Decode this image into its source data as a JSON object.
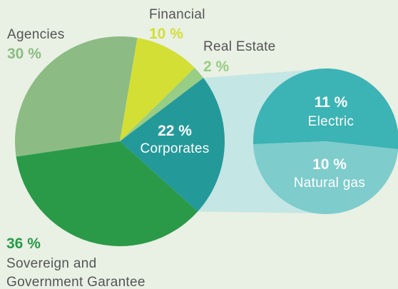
{
  "chart_data": {
    "type": "pie-of-pie",
    "categories": [
      "Corporates",
      "Sovereign and Government Garantee",
      "Agencies",
      "Financial",
      "Real Estate"
    ],
    "values": [
      22,
      36,
      30,
      10,
      2
    ],
    "value_labels": [
      "22 %",
      "36 %",
      "30 %",
      "10 %",
      "2 %"
    ],
    "colors": [
      "#24999a",
      "#2a9a48",
      "#8cbb84",
      "#d3df35",
      "#97cd85"
    ],
    "sub": {
      "categories": [
        "Electric",
        "Natural gas"
      ],
      "values": [
        11,
        10
      ],
      "value_labels": [
        "11 %",
        "10 %"
      ],
      "colors": [
        "#3cb3b4",
        "#7ecccc"
      ]
    }
  }
}
